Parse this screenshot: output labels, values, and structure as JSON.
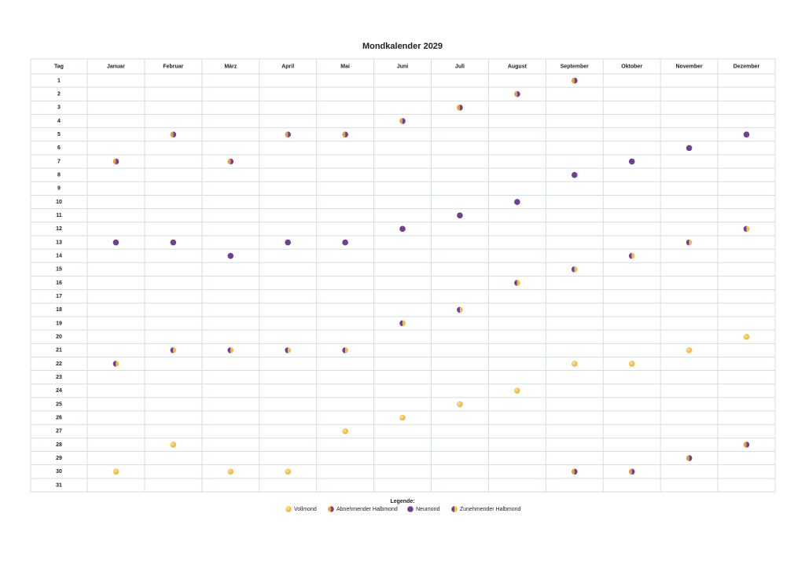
{
  "title": "Mondkalender 2029",
  "table": {
    "header": [
      "Tag",
      "Januar",
      "Februar",
      "März",
      "April",
      "Mai",
      "Juni",
      "Juli",
      "August",
      "September",
      "Oktober",
      "November",
      "Dezember"
    ],
    "days": [
      1,
      2,
      3,
      4,
      5,
      6,
      7,
      8,
      9,
      10,
      11,
      12,
      13,
      14,
      15,
      16,
      17,
      18,
      19,
      20,
      21,
      22,
      23,
      24,
      25,
      26,
      27,
      28,
      29,
      30,
      31
    ],
    "moons": [
      [
        {
          "day": 7,
          "phase": 1
        },
        {
          "day": 13,
          "phase": 2
        },
        {
          "day": 22,
          "phase": 3
        },
        {
          "day": 30,
          "phase": 0
        }
      ],
      [
        {
          "day": 5,
          "phase": 1
        },
        {
          "day": 13,
          "phase": 2
        },
        {
          "day": 21,
          "phase": 3
        },
        {
          "day": 28,
          "phase": 0
        }
      ],
      [
        {
          "day": 7,
          "phase": 1
        },
        {
          "day": 14,
          "phase": 2
        },
        {
          "day": 21,
          "phase": 3
        },
        {
          "day": 30,
          "phase": 0
        }
      ],
      [
        {
          "day": 5,
          "phase": 1
        },
        {
          "day": 13,
          "phase": 2
        },
        {
          "day": 21,
          "phase": 3
        },
        {
          "day": 30,
          "phase": 0
        }
      ],
      [
        {
          "day": 5,
          "phase": 1
        },
        {
          "day": 13,
          "phase": 2
        },
        {
          "day": 21,
          "phase": 3
        },
        {
          "day": 27,
          "phase": 0
        }
      ],
      [
        {
          "day": 4,
          "phase": 1
        },
        {
          "day": 12,
          "phase": 2
        },
        {
          "day": 19,
          "phase": 3
        },
        {
          "day": 26,
          "phase": 0
        }
      ],
      [
        {
          "day": 3,
          "phase": 1
        },
        {
          "day": 11,
          "phase": 2
        },
        {
          "day": 18,
          "phase": 3
        },
        {
          "day": 25,
          "phase": 0
        }
      ],
      [
        {
          "day": 2,
          "phase": 1
        },
        {
          "day": 10,
          "phase": 2
        },
        {
          "day": 16,
          "phase": 3
        },
        {
          "day": 24,
          "phase": 0
        }
      ],
      [
        {
          "day": 1,
          "phase": 1
        },
        {
          "day": 8,
          "phase": 2
        },
        {
          "day": 15,
          "phase": 3
        },
        {
          "day": 22,
          "phase": 0
        },
        {
          "day": 30,
          "phase": 1
        }
      ],
      [
        {
          "day": 7,
          "phase": 2
        },
        {
          "day": 14,
          "phase": 3
        },
        {
          "day": 22,
          "phase": 0
        },
        {
          "day": 30,
          "phase": 1
        }
      ],
      [
        {
          "day": 6,
          "phase": 2
        },
        {
          "day": 13,
          "phase": 3
        },
        {
          "day": 21,
          "phase": 0
        },
        {
          "day": 29,
          "phase": 1
        }
      ],
      [
        {
          "day": 5,
          "phase": 2
        },
        {
          "day": 12,
          "phase": 3
        },
        {
          "day": 20,
          "phase": 0
        },
        {
          "day": 28,
          "phase": 1
        }
      ]
    ]
  },
  "legend": {
    "title": "Legende:",
    "items": [
      "Vollmond",
      "Abnehmender Halbmond",
      "Neumond",
      "Zunehmender Halbmond"
    ]
  }
}
